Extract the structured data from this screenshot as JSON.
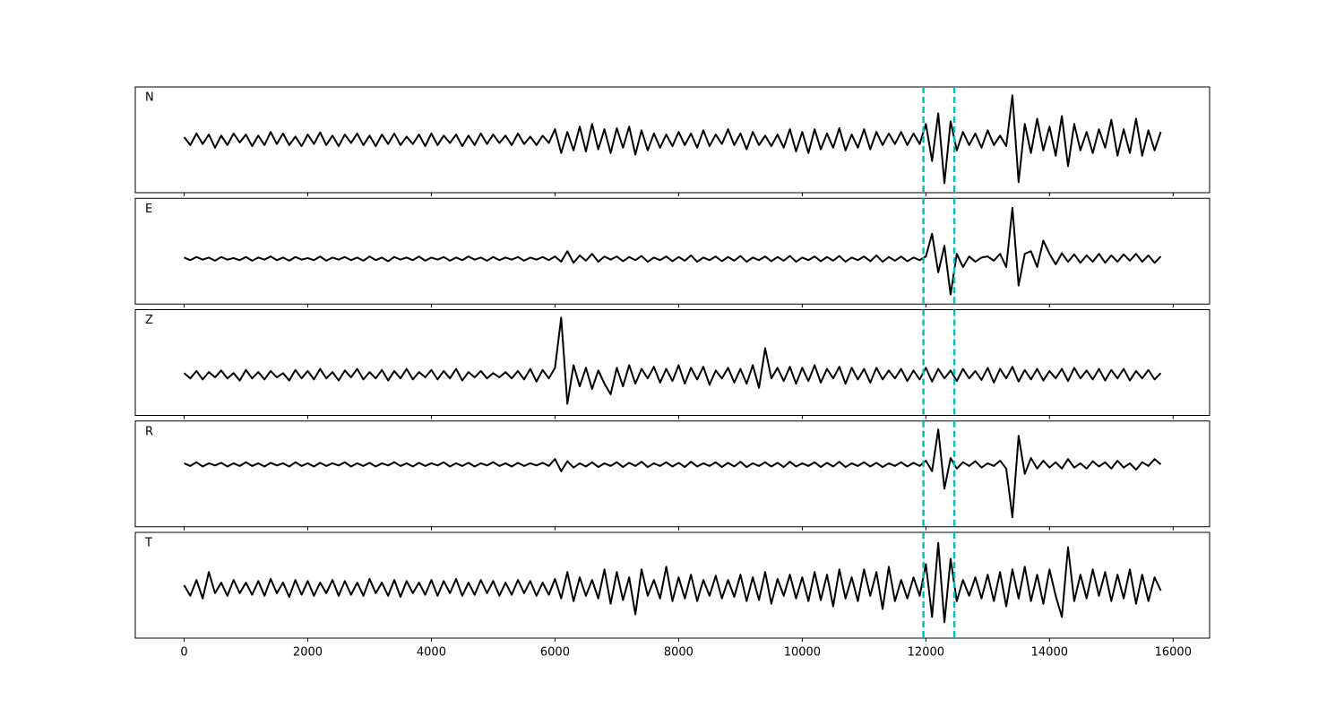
{
  "chart_data": {
    "type": "line",
    "xlim": [
      -790,
      16590
    ],
    "xticks": [
      0,
      2000,
      4000,
      6000,
      8000,
      10000,
      12000,
      14000,
      16000
    ],
    "ylim": [
      -1,
      1
    ],
    "vlines": [
      11960,
      12460
    ],
    "vline_color": "#00bfbf",
    "x": [
      0,
      100,
      200,
      300,
      400,
      500,
      600,
      700,
      800,
      900,
      1000,
      1100,
      1200,
      1300,
      1400,
      1500,
      1600,
      1700,
      1800,
      1900,
      2000,
      2100,
      2200,
      2300,
      2400,
      2500,
      2600,
      2700,
      2800,
      2900,
      3000,
      3100,
      3200,
      3300,
      3400,
      3500,
      3600,
      3700,
      3800,
      3900,
      4000,
      4100,
      4200,
      4300,
      4400,
      4500,
      4600,
      4700,
      4800,
      4900,
      5000,
      5100,
      5200,
      5300,
      5400,
      5500,
      5600,
      5700,
      5800,
      5900,
      6000,
      6100,
      6200,
      6300,
      6400,
      6500,
      6600,
      6700,
      6800,
      6900,
      7000,
      7100,
      7200,
      7300,
      7400,
      7500,
      7600,
      7700,
      7800,
      7900,
      8000,
      8100,
      8200,
      8300,
      8400,
      8500,
      8600,
      8700,
      8800,
      8900,
      9000,
      9100,
      9200,
      9300,
      9400,
      9500,
      9600,
      9700,
      9800,
      9900,
      10000,
      10100,
      10200,
      10300,
      10400,
      10500,
      10600,
      10700,
      10800,
      10900,
      11000,
      11100,
      11200,
      11300,
      11400,
      11500,
      11600,
      11700,
      11800,
      11900,
      12000,
      12100,
      12200,
      12300,
      12400,
      12500,
      12600,
      12700,
      12800,
      12900,
      13000,
      13100,
      13200,
      13300,
      13400,
      13500,
      13600,
      13700,
      13800,
      13900,
      14000,
      14100,
      14200,
      14300,
      14400,
      14500,
      14600,
      14700,
      14800,
      14900,
      15000,
      15100,
      15200,
      15300,
      15400,
      15500,
      15600,
      15700,
      15800
    ],
    "series": [
      {
        "name": "N",
        "color": "#000000",
        "values": [
          0.05,
          -0.1,
          0.12,
          -0.08,
          0.1,
          -0.15,
          0.08,
          -0.1,
          0.12,
          -0.05,
          0.1,
          -0.12,
          0.08,
          -0.1,
          0.15,
          -0.08,
          0.12,
          -0.1,
          0.06,
          -0.12,
          0.1,
          -0.08,
          0.14,
          -0.1,
          0.08,
          -0.12,
          0.1,
          -0.06,
          0.12,
          -0.1,
          0.08,
          -0.12,
          0.1,
          -0.08,
          0.12,
          -0.1,
          0.06,
          -0.08,
          0.1,
          -0.12,
          0.12,
          -0.1,
          0.08,
          -0.06,
          0.1,
          -0.12,
          0.08,
          -0.1,
          0.12,
          -0.08,
          0.1,
          -0.06,
          0.08,
          -0.1,
          0.12,
          -0.08,
          0.06,
          -0.1,
          0.08,
          -0.06,
          0.2,
          -0.25,
          0.15,
          -0.2,
          0.25,
          -0.22,
          0.3,
          -0.18,
          0.2,
          -0.25,
          0.22,
          -0.15,
          0.25,
          -0.28,
          0.18,
          -0.2,
          0.12,
          -0.15,
          0.1,
          -0.12,
          0.15,
          -0.1,
          0.12,
          -0.15,
          0.18,
          -0.12,
          0.1,
          -0.08,
          0.2,
          -0.1,
          0.12,
          -0.18,
          0.15,
          -0.1,
          0.08,
          -0.12,
          0.1,
          -0.15,
          0.2,
          -0.22,
          0.15,
          -0.25,
          0.2,
          -0.18,
          0.12,
          -0.15,
          0.22,
          -0.2,
          0.1,
          -0.15,
          0.2,
          -0.18,
          0.15,
          -0.1,
          0.12,
          -0.08,
          0.15,
          -0.1,
          0.12,
          -0.08,
          0.3,
          -0.4,
          0.5,
          -0.82,
          0.35,
          -0.2,
          0.15,
          -0.1,
          0.12,
          -0.15,
          0.18,
          -0.1,
          0.08,
          -0.12,
          0.84,
          -0.8,
          0.3,
          -0.25,
          0.4,
          -0.2,
          0.25,
          -0.3,
          0.45,
          -0.5,
          0.3,
          -0.2,
          0.15,
          -0.25,
          0.2,
          -0.15,
          0.38,
          -0.3,
          0.2,
          -0.25,
          0.4,
          -0.3,
          0.18,
          -0.2,
          0.15
        ]
      },
      {
        "name": "E",
        "color": "#000000",
        "values": [
          -0.12,
          -0.17,
          -0.11,
          -0.16,
          -0.12,
          -0.18,
          -0.11,
          -0.16,
          -0.13,
          -0.17,
          -0.11,
          -0.18,
          -0.12,
          -0.16,
          -0.1,
          -0.17,
          -0.12,
          -0.18,
          -0.11,
          -0.16,
          -0.13,
          -0.17,
          -0.1,
          -0.18,
          -0.12,
          -0.16,
          -0.11,
          -0.17,
          -0.12,
          -0.18,
          -0.1,
          -0.17,
          -0.12,
          -0.19,
          -0.11,
          -0.16,
          -0.12,
          -0.17,
          -0.1,
          -0.18,
          -0.12,
          -0.16,
          -0.11,
          -0.18,
          -0.12,
          -0.17,
          -0.1,
          -0.16,
          -0.12,
          -0.18,
          -0.11,
          -0.17,
          -0.12,
          -0.16,
          -0.11,
          -0.18,
          -0.12,
          -0.16,
          -0.11,
          -0.17,
          -0.1,
          -0.2,
          0.0,
          -0.22,
          -0.08,
          -0.18,
          -0.05,
          -0.2,
          -0.1,
          -0.16,
          -0.1,
          -0.19,
          -0.11,
          -0.17,
          -0.09,
          -0.2,
          -0.12,
          -0.17,
          -0.1,
          -0.19,
          -0.11,
          -0.18,
          -0.08,
          -0.2,
          -0.12,
          -0.17,
          -0.1,
          -0.19,
          -0.11,
          -0.18,
          -0.09,
          -0.2,
          -0.12,
          -0.17,
          -0.1,
          -0.19,
          -0.11,
          -0.18,
          -0.09,
          -0.2,
          -0.12,
          -0.17,
          -0.1,
          -0.19,
          -0.11,
          -0.18,
          -0.09,
          -0.2,
          -0.12,
          -0.17,
          -0.1,
          -0.19,
          -0.08,
          -0.2,
          -0.11,
          -0.18,
          -0.1,
          -0.19,
          -0.12,
          -0.17,
          -0.1,
          0.33,
          -0.4,
          0.1,
          -0.82,
          -0.05,
          -0.3,
          -0.1,
          -0.2,
          -0.12,
          -0.1,
          -0.18,
          -0.05,
          -0.3,
          0.82,
          -0.65,
          -0.05,
          0.0,
          -0.3,
          0.2,
          -0.05,
          -0.25,
          -0.04,
          -0.2,
          -0.06,
          -0.22,
          -0.08,
          -0.2,
          -0.05,
          -0.22,
          -0.08,
          -0.2,
          -0.06,
          -0.18,
          -0.05,
          -0.2,
          -0.08,
          -0.22,
          -0.1
        ]
      },
      {
        "name": "Z",
        "color": "#000000",
        "values": [
          -0.2,
          -0.3,
          -0.16,
          -0.32,
          -0.18,
          -0.28,
          -0.15,
          -0.3,
          -0.2,
          -0.34,
          -0.14,
          -0.3,
          -0.18,
          -0.32,
          -0.16,
          -0.28,
          -0.2,
          -0.34,
          -0.14,
          -0.3,
          -0.16,
          -0.32,
          -0.12,
          -0.3,
          -0.18,
          -0.34,
          -0.15,
          -0.28,
          -0.12,
          -0.32,
          -0.18,
          -0.3,
          -0.14,
          -0.34,
          -0.16,
          -0.3,
          -0.12,
          -0.32,
          -0.18,
          -0.28,
          -0.14,
          -0.32,
          -0.16,
          -0.3,
          -0.12,
          -0.34,
          -0.18,
          -0.28,
          -0.16,
          -0.3,
          -0.2,
          -0.28,
          -0.18,
          -0.3,
          -0.16,
          -0.32,
          -0.12,
          -0.36,
          -0.14,
          -0.3,
          -0.1,
          0.85,
          -0.78,
          -0.05,
          -0.45,
          -0.1,
          -0.5,
          -0.15,
          -0.4,
          -0.6,
          -0.1,
          -0.45,
          -0.05,
          -0.4,
          -0.12,
          -0.3,
          -0.08,
          -0.38,
          -0.12,
          -0.35,
          -0.05,
          -0.4,
          -0.1,
          -0.32,
          -0.08,
          -0.42,
          -0.15,
          -0.3,
          -0.1,
          -0.38,
          -0.12,
          -0.4,
          -0.05,
          -0.48,
          0.27,
          -0.3,
          -0.1,
          -0.35,
          -0.08,
          -0.4,
          -0.1,
          -0.35,
          -0.05,
          -0.38,
          -0.12,
          -0.3,
          -0.08,
          -0.4,
          -0.1,
          -0.32,
          -0.12,
          -0.38,
          -0.1,
          -0.32,
          -0.15,
          -0.3,
          -0.12,
          -0.35,
          -0.15,
          -0.32,
          -0.1,
          -0.36,
          -0.12,
          -0.3,
          -0.15,
          -0.35,
          -0.12,
          -0.3,
          -0.16,
          -0.33,
          -0.1,
          -0.38,
          -0.12,
          -0.3,
          -0.08,
          -0.36,
          -0.14,
          -0.32,
          -0.12,
          -0.34,
          -0.16,
          -0.3,
          -0.12,
          -0.35,
          -0.1,
          -0.3,
          -0.15,
          -0.32,
          -0.12,
          -0.34,
          -0.14,
          -0.3,
          -0.12,
          -0.34,
          -0.16,
          -0.3,
          -0.14,
          -0.32,
          -0.2
        ]
      },
      {
        "name": "R",
        "color": "#000000",
        "values": [
          0.2,
          0.15,
          0.22,
          0.14,
          0.2,
          0.16,
          0.21,
          0.14,
          0.2,
          0.15,
          0.22,
          0.15,
          0.2,
          0.14,
          0.21,
          0.16,
          0.2,
          0.14,
          0.22,
          0.15,
          0.2,
          0.14,
          0.21,
          0.15,
          0.2,
          0.16,
          0.22,
          0.14,
          0.2,
          0.15,
          0.21,
          0.14,
          0.2,
          0.16,
          0.22,
          0.15,
          0.2,
          0.14,
          0.21,
          0.15,
          0.2,
          0.16,
          0.22,
          0.14,
          0.2,
          0.15,
          0.21,
          0.14,
          0.2,
          0.16,
          0.22,
          0.15,
          0.2,
          0.14,
          0.21,
          0.15,
          0.2,
          0.16,
          0.21,
          0.15,
          0.28,
          0.05,
          0.24,
          0.12,
          0.2,
          0.14,
          0.22,
          0.13,
          0.2,
          0.15,
          0.22,
          0.13,
          0.21,
          0.15,
          0.23,
          0.13,
          0.2,
          0.15,
          0.22,
          0.14,
          0.21,
          0.13,
          0.23,
          0.14,
          0.2,
          0.15,
          0.22,
          0.13,
          0.21,
          0.14,
          0.23,
          0.13,
          0.2,
          0.15,
          0.22,
          0.14,
          0.21,
          0.13,
          0.23,
          0.14,
          0.2,
          0.15,
          0.22,
          0.13,
          0.21,
          0.14,
          0.23,
          0.13,
          0.2,
          0.15,
          0.22,
          0.14,
          0.21,
          0.13,
          0.2,
          0.15,
          0.22,
          0.14,
          0.21,
          0.15,
          0.25,
          0.05,
          0.84,
          -0.28,
          0.3,
          0.1,
          0.22,
          0.15,
          0.24,
          0.12,
          0.2,
          0.15,
          0.25,
          0.1,
          -0.82,
          0.72,
          0.0,
          0.3,
          0.1,
          0.25,
          0.12,
          0.22,
          0.1,
          0.28,
          0.12,
          0.2,
          0.1,
          0.24,
          0.14,
          0.22,
          0.1,
          0.25,
          0.12,
          0.2,
          0.08,
          0.22,
          0.15,
          0.28,
          0.18
        ]
      },
      {
        "name": "T",
        "color": "#000000",
        "values": [
          0.0,
          -0.2,
          0.1,
          -0.25,
          0.25,
          -0.15,
          0.05,
          -0.2,
          0.1,
          -0.15,
          0.05,
          -0.18,
          0.08,
          -0.2,
          0.12,
          -0.15,
          0.05,
          -0.22,
          0.1,
          -0.18,
          0.08,
          -0.2,
          0.05,
          -0.15,
          0.1,
          -0.2,
          0.08,
          -0.18,
          0.05,
          -0.2,
          0.12,
          -0.15,
          0.05,
          -0.2,
          0.1,
          -0.22,
          0.08,
          -0.15,
          0.05,
          -0.18,
          0.1,
          -0.2,
          0.08,
          -0.15,
          0.12,
          -0.2,
          0.05,
          -0.18,
          0.1,
          -0.15,
          0.08,
          -0.2,
          0.05,
          -0.18,
          0.1,
          -0.15,
          0.08,
          -0.2,
          0.05,
          -0.18,
          0.12,
          -0.25,
          0.25,
          -0.3,
          0.15,
          -0.2,
          0.1,
          -0.25,
          0.3,
          -0.35,
          0.25,
          -0.28,
          0.15,
          -0.55,
          0.3,
          -0.2,
          0.1,
          -0.25,
          0.35,
          -0.3,
          0.15,
          -0.25,
          0.2,
          -0.3,
          0.1,
          -0.2,
          0.18,
          -0.25,
          0.1,
          -0.22,
          0.2,
          -0.3,
          0.15,
          -0.28,
          0.25,
          -0.35,
          0.12,
          -0.2,
          0.2,
          -0.25,
          0.15,
          -0.3,
          0.25,
          -0.28,
          0.2,
          -0.4,
          0.3,
          -0.25,
          0.15,
          -0.3,
          0.3,
          -0.2,
          0.25,
          -0.45,
          0.35,
          -0.3,
          0.1,
          -0.25,
          0.15,
          -0.2,
          0.4,
          -0.6,
          0.8,
          -0.7,
          0.5,
          -0.3,
          0.1,
          -0.2,
          0.15,
          -0.25,
          0.2,
          -0.3,
          0.25,
          -0.4,
          0.3,
          -0.25,
          0.35,
          -0.3,
          0.2,
          -0.35,
          0.3,
          -0.2,
          -0.6,
          0.72,
          -0.3,
          0.2,
          -0.25,
          0.3,
          -0.2,
          0.25,
          -0.3,
          0.2,
          -0.25,
          0.3,
          -0.35,
          0.2,
          -0.3,
          0.15,
          -0.1
        ]
      }
    ]
  }
}
